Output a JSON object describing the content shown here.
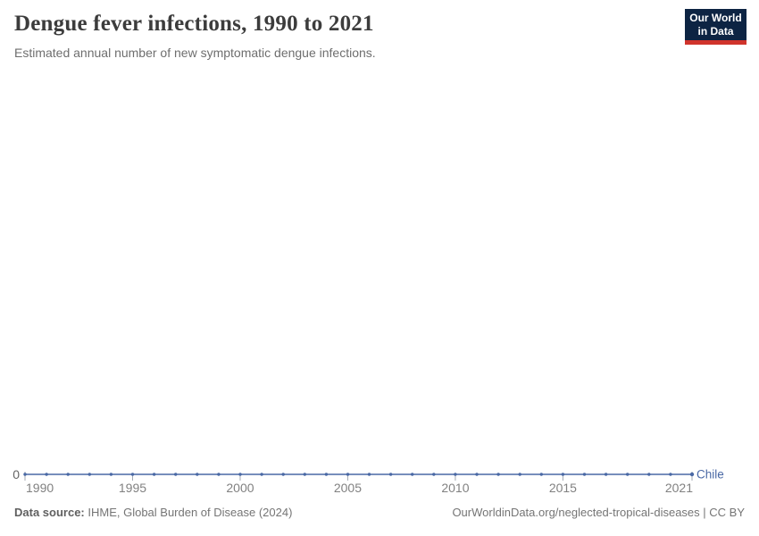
{
  "header": {
    "title": "Dengue fever infections, 1990 to 2021",
    "subtitle": "Estimated annual number of new symptomatic dengue infections.",
    "logo": {
      "line1": "Our World",
      "line2": "in Data",
      "bg_color": "#0d2443",
      "accent_color": "#d0342c"
    }
  },
  "chart_data": {
    "type": "line",
    "title": "Dengue fever infections, 1990 to 2021",
    "xlabel": "",
    "ylabel": "",
    "xlim": [
      1990,
      2021
    ],
    "ylim": [
      0,
      1
    ],
    "x_ticks": [
      1990,
      1995,
      2000,
      2005,
      2010,
      2015,
      2021
    ],
    "y_ticks": [
      0
    ],
    "grid": false,
    "legend_position": "end-of-line",
    "series": [
      {
        "name": "Chile",
        "color": "#4a69a5",
        "x": [
          1990,
          1991,
          1992,
          1993,
          1994,
          1995,
          1996,
          1997,
          1998,
          1999,
          2000,
          2001,
          2002,
          2003,
          2004,
          2005,
          2006,
          2007,
          2008,
          2009,
          2010,
          2011,
          2012,
          2013,
          2014,
          2015,
          2016,
          2017,
          2018,
          2019,
          2020,
          2021
        ],
        "values": [
          0,
          0,
          0,
          0,
          0,
          0,
          0,
          0,
          0,
          0,
          0,
          0,
          0,
          0,
          0,
          0,
          0,
          0,
          0,
          0,
          0,
          0,
          0,
          0,
          0,
          0,
          0,
          0,
          0,
          0,
          0,
          0
        ]
      }
    ]
  },
  "footer": {
    "datasource_label": "Data source:",
    "datasource_value": " IHME, Global Burden of Disease (2024)",
    "credit": "OurWorldinData.org/neglected-tropical-diseases | CC BY"
  }
}
